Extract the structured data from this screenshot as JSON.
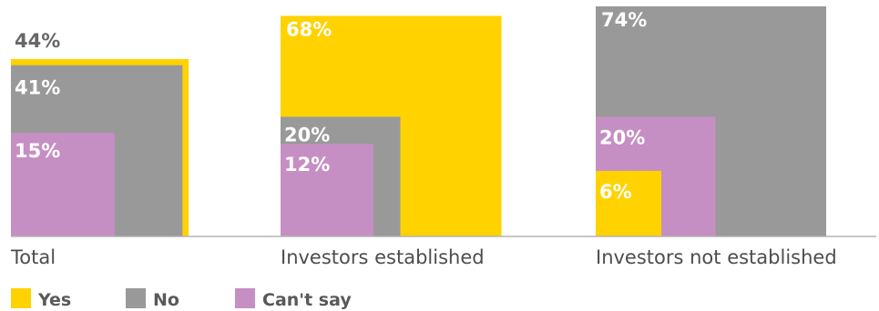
{
  "chart_data": {
    "type": "bar",
    "categories": [
      "Total",
      "Investors established",
      "Investors not established"
    ],
    "series": [
      {
        "name": "Yes",
        "values": [
          44,
          68,
          6
        ]
      },
      {
        "name": "No",
        "values": [
          41,
          20,
          74
        ]
      },
      {
        "name": "Can't say",
        "values": [
          15,
          12,
          20
        ]
      }
    ],
    "value_labels": [
      [
        "44%",
        "41%",
        "15%"
      ],
      [
        "68%",
        "20%",
        "12%"
      ],
      [
        "6%",
        "74%",
        "20%"
      ]
    ],
    "ylim": [
      0,
      74
    ],
    "grid": false,
    "legend_position": "bottom-left",
    "colors": {
      "Yes": "#ffd200",
      "No": "#999999",
      "Can't say": "#c68fc3",
      "baseline": "#b3b3b3"
    }
  }
}
